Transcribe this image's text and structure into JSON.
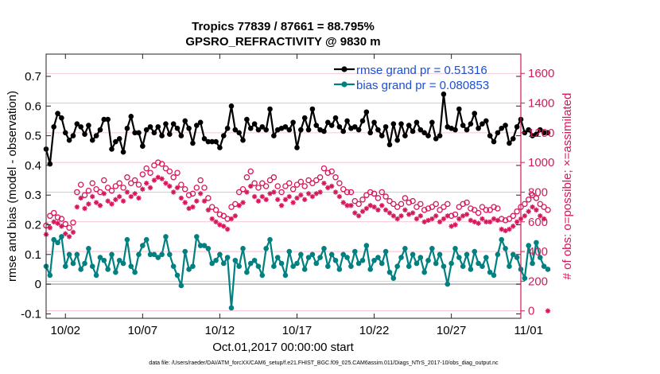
{
  "chart_data": {
    "type": "line",
    "title": "Tropics 77839 / 87661 = 88.795%",
    "subtitle": "GPSRO_REFRACTIVITY @ 9830 m",
    "xlabel": "Oct.01,2017 00:00:00 start",
    "ylabel": "rmse and bias (model - observation)",
    "y2label": "# of obs: o=possible; ×=assimilated",
    "footnote": "data file: /Users/raeder/DAI/ATM_forcXX/CAM6_setup/f.e21.FHIST_BGC.f09_025.CAM6assim.011/Diags_NTrS_2017-10/obs_diag_output.nc",
    "x_range": [
      0.5,
      31.25
    ],
    "ylim": [
      -0.115,
      0.775
    ],
    "y2lim": [
      -50,
      1730
    ],
    "x_tick_labels": [
      {
        "x": 1.75,
        "label": "10/02"
      },
      {
        "x": 6.75,
        "label": "10/07"
      },
      {
        "x": 11.75,
        "label": "10/12"
      },
      {
        "x": 16.75,
        "label": "10/17"
      },
      {
        "x": 21.75,
        "label": "10/22"
      },
      {
        "x": 26.75,
        "label": "10/27"
      },
      {
        "x": 31.75,
        "label": "11/01"
      }
    ],
    "y_ticks": [
      -0.1,
      0,
      0.1,
      0.2,
      0.3,
      0.4,
      0.5,
      0.6,
      0.7
    ],
    "y_tick_labels": [
      "-0.1",
      "0",
      "0.1",
      "0.2",
      "0.3",
      "0.4",
      "0.5",
      "0.6",
      "0.7"
    ],
    "y2_ticks": [
      0,
      200,
      400,
      600,
      800,
      1000,
      1200,
      1400,
      1600
    ],
    "y2_tick_labels": [
      "0",
      "200",
      "400",
      "600",
      "800",
      "1000",
      "1200",
      "1400",
      "1600"
    ],
    "zero_line": 0,
    "x_step_days": 0.25,
    "series": [
      {
        "name": "rmse",
        "legend": "rmse grand pr = 0.51316",
        "color": "#000000",
        "x_start": 0.5,
        "values": [
          0.455,
          0.405,
          0.53,
          0.575,
          0.56,
          0.51,
          0.485,
          0.5,
          0.54,
          0.53,
          0.505,
          0.535,
          0.485,
          0.5,
          0.52,
          0.555,
          0.555,
          0.455,
          0.48,
          0.49,
          0.445,
          0.525,
          0.565,
          0.51,
          0.51,
          0.465,
          0.52,
          0.53,
          0.51,
          0.53,
          0.5,
          0.54,
          0.505,
          0.54,
          0.525,
          0.5,
          0.55,
          0.525,
          0.475,
          0.535,
          0.545,
          0.49,
          0.48,
          0.48,
          0.48,
          0.46,
          0.5,
          0.525,
          0.6,
          0.52,
          0.51,
          0.485,
          0.555,
          0.525,
          0.54,
          0.52,
          0.53,
          0.52,
          0.59,
          0.5,
          0.52,
          0.525,
          0.53,
          0.52,
          0.545,
          0.46,
          0.52,
          0.56,
          0.52,
          0.59,
          0.535,
          0.52,
          0.515,
          0.545,
          0.535,
          0.56,
          0.53,
          0.515,
          0.55,
          0.525,
          0.53,
          0.52,
          0.55,
          0.58,
          0.51,
          0.545,
          0.52,
          0.5,
          0.53,
          0.47,
          0.54,
          0.485,
          0.54,
          0.5,
          0.535,
          0.515,
          0.545,
          0.52,
          0.51,
          0.5,
          0.545,
          0.49,
          0.5,
          0.64,
          0.53,
          0.525,
          0.52,
          0.59,
          0.535,
          0.52,
          0.54,
          0.575,
          0.525,
          0.54,
          0.55,
          0.5,
          0.48,
          0.51,
          0.525,
          0.535,
          0.475,
          0.49,
          0.53,
          0.555,
          0.51,
          0.52,
          0.5,
          0.505,
          0.52,
          0.51,
          0.51
        ]
      },
      {
        "name": "bias",
        "legend": "bias grand pr = 0.080853",
        "color": "#008080",
        "x_start": 0.5,
        "values": [
          0.06,
          0.03,
          0.15,
          0.14,
          0.16,
          0.06,
          0.1,
          0.07,
          0.1,
          0.05,
          0.07,
          0.12,
          0.06,
          0.03,
          0.09,
          0.08,
          0.05,
          0.1,
          0.04,
          0.08,
          0.07,
          0.15,
          0.06,
          0.04,
          0.1,
          0.13,
          0.15,
          0.1,
          0.1,
          0.09,
          0.1,
          0.16,
          0.1,
          0.06,
          0.03,
          -0.005,
          0.11,
          0.05,
          0.06,
          0.16,
          0.13,
          0.13,
          0.12,
          0.07,
          0.08,
          0.1,
          0.07,
          0.09,
          -0.08,
          0.08,
          0.06,
          0.12,
          0.04,
          0.07,
          0.08,
          0.06,
          0.03,
          0.12,
          0.15,
          0.06,
          0.09,
          0.07,
          0.03,
          0.11,
          0.06,
          0.07,
          0.1,
          0.05,
          0.09,
          0.1,
          0.07,
          0.09,
          0.12,
          0.06,
          0.1,
          0.08,
          0.05,
          0.1,
          0.09,
          0.06,
          0.11,
          0.07,
          0.08,
          0.13,
          0.05,
          0.08,
          0.09,
          0.07,
          0.11,
          0.04,
          0.02,
          0.06,
          0.09,
          0.12,
          0.06,
          0.1,
          0.07,
          0.09,
          0.04,
          0.08,
          0.12,
          0.07,
          0.1,
          0.06,
          0.0,
          0.07,
          0.12,
          0.09,
          0.06,
          0.1,
          0.05,
          0.11,
          0.07,
          0.06,
          0.09,
          0.04,
          0.03,
          0.1,
          0.15,
          0.12,
          0.06,
          0.1,
          0.09,
          0.05,
          0.02,
          0.13,
          0.07,
          0.14,
          0.09,
          0.06,
          0.05
        ]
      },
      {
        "name": "possible",
        "marker": "o",
        "color": "#d6175b",
        "x_start": 0.5,
        "values": [
          575,
          640,
          660,
          630,
          620,
          585,
          560,
          595,
          800,
          850,
          780,
          810,
          860,
          820,
          800,
          880,
          830,
          810,
          840,
          860,
          830,
          900,
          860,
          880,
          850,
          920,
          960,
          930,
          980,
          1000,
          990,
          960,
          940,
          900,
          930,
          850,
          820,
          780,
          790,
          830,
          880,
          830,
          760,
          700,
          680,
          650,
          640,
          620,
          700,
          720,
          800,
          820,
          900,
          940,
          860,
          830,
          860,
          840,
          880,
          900,
          840,
          800,
          840,
          860,
          820,
          850,
          870,
          840,
          880,
          860,
          880,
          900,
          960,
          930,
          940,
          900,
          860,
          820,
          800,
          800,
          740,
          720,
          750,
          780,
          800,
          790,
          760,
          800,
          770,
          740,
          720,
          700,
          720,
          760,
          730,
          740,
          700,
          720,
          680,
          690,
          700,
          720,
          680,
          700,
          720,
          640,
          650,
          700,
          720,
          730,
          690,
          680,
          660,
          700,
          680,
          680,
          700,
          690,
          620,
          610,
          620,
          640,
          670,
          700,
          720,
          750,
          780,
          760,
          720,
          700,
          680
        ]
      },
      {
        "name": "assimilated",
        "marker": "x",
        "color": "#d6175b",
        "x_start": 0.5,
        "values": [
          515,
          560,
          600,
          590,
          570,
          520,
          500,
          530,
          700,
          760,
          690,
          720,
          770,
          730,
          710,
          790,
          740,
          720,
          750,
          770,
          740,
          800,
          770,
          790,
          760,
          820,
          860,
          830,
          880,
          900,
          890,
          860,
          840,
          800,
          830,
          760,
          730,
          690,
          700,
          740,
          790,
          740,
          680,
          620,
          600,
          580,
          570,
          550,
          620,
          640,
          710,
          730,
          800,
          840,
          770,
          740,
          770,
          750,
          790,
          800,
          750,
          710,
          750,
          770,
          730,
          760,
          780,
          750,
          790,
          770,
          790,
          800,
          860,
          830,
          840,
          800,
          770,
          730,
          710,
          710,
          660,
          640,
          670,
          690,
          710,
          700,
          680,
          710,
          680,
          660,
          640,
          620,
          640,
          680,
          650,
          660,
          620,
          640,
          600,
          610,
          620,
          640,
          600,
          620,
          640,
          570,
          580,
          620,
          640,
          650,
          610,
          600,
          590,
          620,
          600,
          600,
          620,
          610,
          550,
          540,
          550,
          570,
          600,
          620,
          640,
          670,
          700,
          680,
          640,
          620,
          0
        ]
      }
    ]
  }
}
